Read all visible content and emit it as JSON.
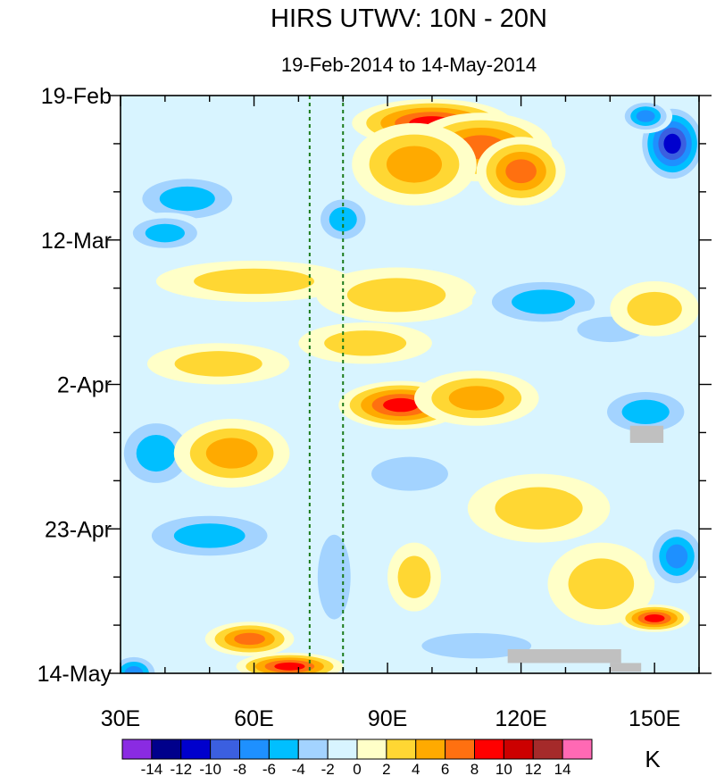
{
  "chart_data": {
    "type": "heatmap",
    "title": "HIRS UTWV: 10N - 20N",
    "subtitle": "19-Feb-2014 to 14-May-2014",
    "x_ticks": [
      {
        "label": "30E",
        "value": 30
      },
      {
        "label": "60E",
        "value": 60
      },
      {
        "label": "90E",
        "value": 90
      },
      {
        "label": "120E",
        "value": 120
      },
      {
        "label": "150E",
        "value": 150
      }
    ],
    "x_range": [
      30,
      160
    ],
    "y_ticks": [
      {
        "label": "19-Feb",
        "value": 0
      },
      {
        "label": "12-Mar",
        "value": 21
      },
      {
        "label": "2-Apr",
        "value": 42
      },
      {
        "label": "23-Apr",
        "value": 63
      },
      {
        "label": "14-May",
        "value": 84
      }
    ],
    "y_range_days": [
      0,
      84
    ],
    "reference_lines_lon": [
      72.5,
      80
    ],
    "colorbar": {
      "unit": "K",
      "levels": [
        -14,
        -12,
        -10,
        -8,
        -6,
        -4,
        -2,
        0,
        2,
        4,
        6,
        8,
        10,
        12,
        14
      ],
      "labels": [
        "-14",
        "-12",
        "-10",
        "-8",
        "-6",
        "-4",
        "-2",
        "0",
        "2",
        "4",
        "6",
        "8",
        "10",
        "12",
        "14"
      ],
      "colors": [
        "#8a2be2",
        "#00008b",
        "#0000cd",
        "#3b5fe0",
        "#1e90ff",
        "#00bfff",
        "#a3d3ff",
        "#d8f4ff",
        "#ffffc8",
        "#ffd733",
        "#ffaa00",
        "#ff7010",
        "#ff0000",
        "#cc0000",
        "#a52a2a",
        "#ff69b4"
      ]
    },
    "features": [
      {
        "type": "warm",
        "lon": 100,
        "day": 4,
        "rx": 18,
        "ry": 3.5,
        "amp": 10
      },
      {
        "type": "warm",
        "lon": 111,
        "day": 7.5,
        "rx": 16,
        "ry": 5,
        "amp": 9
      },
      {
        "type": "warm",
        "lon": 96,
        "day": 10,
        "rx": 14,
        "ry": 6,
        "amp": 6
      },
      {
        "type": "warm",
        "lon": 120,
        "day": 11,
        "rx": 10,
        "ry": 5,
        "amp": 8
      },
      {
        "type": "cold",
        "lon": 154,
        "day": 7,
        "rx": 8,
        "ry": 6,
        "amp": -13
      },
      {
        "type": "cold",
        "lon": 148,
        "day": 3,
        "rx": 6,
        "ry": 2.5,
        "amp": -9
      },
      {
        "type": "cold",
        "lon": 45,
        "day": 15,
        "rx": 14,
        "ry": 4,
        "amp": -6
      },
      {
        "type": "cold",
        "lon": 40,
        "day": 20,
        "rx": 10,
        "ry": 3,
        "amp": -7
      },
      {
        "type": "cold",
        "lon": 80,
        "day": 18,
        "rx": 7,
        "ry": 4,
        "amp": -6
      },
      {
        "type": "warm",
        "lon": 60,
        "day": 27,
        "rx": 22,
        "ry": 3,
        "amp": 4
      },
      {
        "type": "warm",
        "lon": 92,
        "day": 29,
        "rx": 18,
        "ry": 4,
        "amp": 5
      },
      {
        "type": "cold",
        "lon": 125,
        "day": 30,
        "rx": 16,
        "ry": 4,
        "amp": -6
      },
      {
        "type": "cold",
        "lon": 140,
        "day": 34,
        "rx": 12,
        "ry": 3,
        "amp": -5
      },
      {
        "type": "warm",
        "lon": 150,
        "day": 31,
        "rx": 10,
        "ry": 4,
        "amp": 4
      },
      {
        "type": "warm",
        "lon": 85,
        "day": 36,
        "rx": 15,
        "ry": 3,
        "amp": 5
      },
      {
        "type": "warm",
        "lon": 52,
        "day": 39,
        "rx": 16,
        "ry": 3,
        "amp": 5
      },
      {
        "type": "warm",
        "lon": 93,
        "day": 45,
        "rx": 14,
        "ry": 3.5,
        "amp": 11
      },
      {
        "type": "warm",
        "lon": 110,
        "day": 44,
        "rx": 14,
        "ry": 4,
        "amp": 6
      },
      {
        "type": "cold",
        "lon": 148,
        "day": 46,
        "rx": 12,
        "ry": 4,
        "amp": -7
      },
      {
        "type": "cold",
        "lon": 38,
        "day": 52,
        "rx": 10,
        "ry": 6,
        "amp": -7
      },
      {
        "type": "warm",
        "lon": 55,
        "day": 52,
        "rx": 13,
        "ry": 5,
        "amp": 6
      },
      {
        "type": "cold",
        "lon": 95,
        "day": 55,
        "rx": 14,
        "ry": 4,
        "amp": -4
      },
      {
        "type": "cold",
        "lon": 50,
        "day": 64,
        "rx": 18,
        "ry": 4,
        "amp": -7
      },
      {
        "type": "warm",
        "lon": 124,
        "day": 60,
        "rx": 16,
        "ry": 5,
        "amp": 5
      },
      {
        "type": "warm",
        "lon": 96,
        "day": 70,
        "rx": 6,
        "ry": 5,
        "amp": 5
      },
      {
        "type": "warm",
        "lon": 138,
        "day": 71,
        "rx": 12,
        "ry": 6,
        "amp": 5
      },
      {
        "type": "cold",
        "lon": 155,
        "day": 67,
        "rx": 7,
        "ry": 5,
        "amp": -8
      },
      {
        "type": "cold",
        "lon": 78,
        "day": 70,
        "rx": 6,
        "ry": 10,
        "amp": -5
      },
      {
        "type": "warm",
        "lon": 59,
        "day": 79,
        "rx": 10,
        "ry": 2.5,
        "amp": 9
      },
      {
        "type": "warm",
        "lon": 68,
        "day": 83,
        "rx": 12,
        "ry": 2,
        "amp": 10
      },
      {
        "type": "warm",
        "lon": 150,
        "day": 76,
        "rx": 8,
        "ry": 2,
        "amp": 10
      },
      {
        "type": "cold",
        "lon": 110,
        "day": 80,
        "rx": 20,
        "ry": 3,
        "amp": -5
      },
      {
        "type": "cold",
        "lon": 33,
        "day": 84,
        "rx": 6,
        "ry": 3,
        "amp": -8
      }
    ],
    "missing_regions": [
      {
        "lon": [
          144.5,
          152
        ],
        "day": [
          48,
          50.5
        ]
      },
      {
        "lon": [
          117,
          142.5
        ],
        "day": [
          80.5,
          82.5
        ]
      },
      {
        "lon": [
          140,
          147
        ],
        "day": [
          82.5,
          83.8
        ]
      }
    ]
  }
}
